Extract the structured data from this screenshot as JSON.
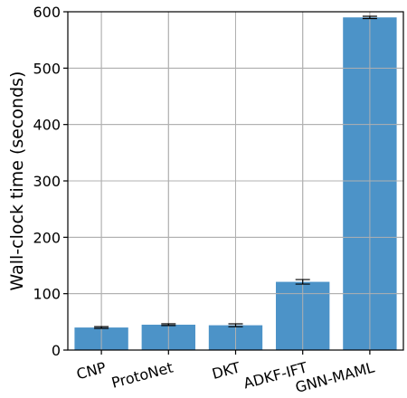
{
  "chart_data": {
    "type": "bar",
    "title": "",
    "xlabel": "",
    "ylabel": "Wall-clock time (seconds)",
    "categories": [
      "CNP",
      "ProtoNet",
      "DKT",
      "ADKF-IFT",
      "GNN-MAML"
    ],
    "values": [
      40,
      45,
      44,
      121,
      590
    ],
    "errors": [
      1.5,
      1.5,
      2.5,
      4,
      2
    ],
    "ylim": [
      0,
      600
    ],
    "yticks": [
      0,
      100,
      200,
      300,
      400,
      500,
      600
    ],
    "grid": true,
    "bar_color": "#4c93c8",
    "error_color": "#000000"
  }
}
